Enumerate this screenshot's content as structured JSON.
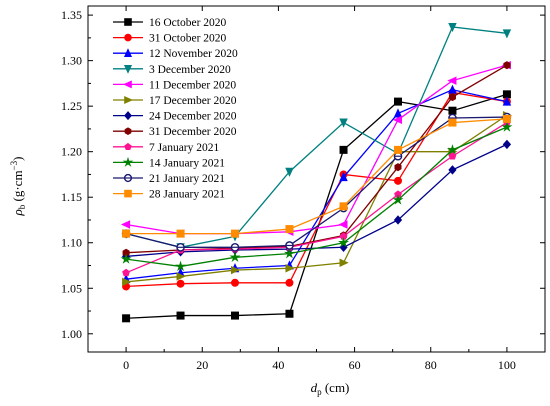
{
  "chart_data": {
    "type": "line",
    "xlabel": "d",
    "xlabel_sub": "p",
    "xlabel_unit": " (cm)",
    "ylabel": "ρ",
    "ylabel_sub": "b",
    "ylabel_unit": " (g·cm",
    "ylabel_sup": "−3",
    "ylabel_close": ")",
    "xlim": [
      -10,
      110
    ],
    "ylim": [
      0.98,
      1.36
    ],
    "xticks": [
      0,
      20,
      40,
      60,
      80,
      100
    ],
    "yticks": [
      1.0,
      1.05,
      1.1,
      1.15,
      1.2,
      1.25,
      1.3,
      1.35
    ],
    "x": [
      0,
      14.3,
      28.6,
      42.9,
      57.1,
      71.4,
      85.7,
      100
    ],
    "legend_position": "upper-left",
    "grid": false,
    "series": [
      {
        "name": "16 October 2020",
        "color": "#000000",
        "marker": "square",
        "values": [
          1.017,
          1.02,
          1.02,
          1.022,
          1.202,
          1.255,
          1.245,
          1.263
        ]
      },
      {
        "name": "31 October 2020",
        "color": "#ff0000",
        "marker": "circle",
        "values": [
          1.052,
          1.055,
          1.056,
          1.056,
          1.175,
          1.168,
          1.265,
          1.255
        ]
      },
      {
        "name": "12 November 2020",
        "color": "#0000ff",
        "marker": "triangle-up",
        "values": [
          1.06,
          1.067,
          1.072,
          1.075,
          1.172,
          1.242,
          1.268,
          1.255
        ]
      },
      {
        "name": "3 December 2020",
        "color": "#008080",
        "marker": "triangle-down",
        "values": [
          1.11,
          1.095,
          1.107,
          1.178,
          1.232,
          1.198,
          1.337,
          1.33
        ]
      },
      {
        "name": "11 December 2020",
        "color": "#ff00ff",
        "marker": "triangle-left",
        "values": [
          1.12,
          1.11,
          1.11,
          1.112,
          1.12,
          1.235,
          1.278,
          1.295
        ]
      },
      {
        "name": "17 December 2020",
        "color": "#808000",
        "marker": "triangle-right",
        "values": [
          1.057,
          1.063,
          1.07,
          1.072,
          1.078,
          1.2,
          1.2,
          1.24
        ]
      },
      {
        "name": "24 December 2020",
        "color": "#00008b",
        "marker": "diamond",
        "values": [
          1.085,
          1.09,
          1.092,
          1.093,
          1.095,
          1.125,
          1.18,
          1.208
        ]
      },
      {
        "name": "31 December 2020",
        "color": "#800000",
        "marker": "hexagon",
        "values": [
          1.089,
          1.092,
          1.094,
          1.096,
          1.108,
          1.183,
          1.26,
          1.295
        ]
      },
      {
        "name": "7 January 2021",
        "color": "#ff1493",
        "marker": "pentagon",
        "values": [
          1.067,
          1.092,
          1.093,
          1.095,
          1.107,
          1.153,
          1.195,
          1.232
        ]
      },
      {
        "name": "14 January 2021",
        "color": "#008000",
        "marker": "star",
        "values": [
          1.082,
          1.074,
          1.084,
          1.088,
          1.1,
          1.147,
          1.202,
          1.227
        ]
      },
      {
        "name": "21 January 2021",
        "color": "#191970",
        "marker": "circle-bar",
        "values": [
          1.11,
          1.095,
          1.095,
          1.097,
          1.138,
          1.195,
          1.237,
          1.238
        ]
      },
      {
        "name": "28 January 2021",
        "color": "#ff8c00",
        "marker": "square",
        "values": [
          1.11,
          1.11,
          1.11,
          1.115,
          1.14,
          1.202,
          1.232,
          1.236
        ]
      }
    ]
  }
}
